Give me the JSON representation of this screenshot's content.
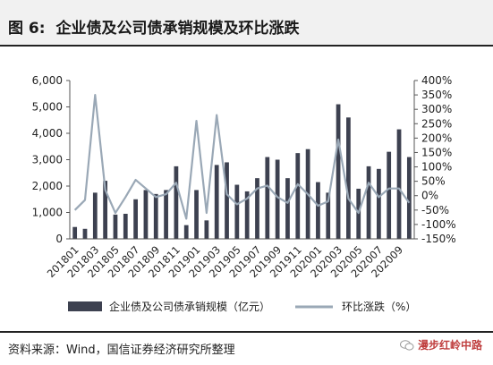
{
  "header": {
    "figure_label": "图 6:",
    "title": "企业债及公司债承销规模及环比涨跌"
  },
  "footer": {
    "source": "资料来源：Wind，国信证券经济研究所整理",
    "watermark": "漫步红岭中路"
  },
  "chart_data": {
    "type": "bar",
    "title": "",
    "categories": [
      "201801",
      "201802",
      "201803",
      "201804",
      "201805",
      "201806",
      "201807",
      "201808",
      "201809",
      "201810",
      "201811",
      "201812",
      "201901",
      "201902",
      "201903",
      "201904",
      "201905",
      "201906",
      "201907",
      "201908",
      "201909",
      "201910",
      "201911",
      "201912",
      "202001",
      "202002",
      "202003",
      "202004",
      "202005",
      "202006",
      "202007",
      "202008",
      "202009",
      "202010"
    ],
    "x_tick_labels": [
      "201801",
      "201803",
      "201805",
      "201807",
      "201809",
      "201811",
      "201901",
      "201903",
      "201905",
      "201907",
      "201909",
      "201911",
      "202001",
      "202003",
      "202005",
      "202007",
      "202009"
    ],
    "series": [
      {
        "name": "企业债及公司债承销规模（亿元）",
        "axis": "left",
        "color": "#3d4150",
        "values": [
          450,
          380,
          1750,
          2200,
          920,
          950,
          1500,
          1850,
          1700,
          1850,
          2750,
          520,
          1850,
          700,
          2800,
          2900,
          2050,
          1800,
          2300,
          3100,
          3000,
          2300,
          3250,
          3400,
          2150,
          1750,
          5100,
          4600,
          1900,
          2750,
          2650,
          3300,
          4150,
          3100
        ]
      },
      {
        "name": "环比涨跌（%）",
        "axis": "right",
        "color": "#9aa8b6",
        "values": [
          -50,
          -15,
          350,
          20,
          -60,
          -5,
          55,
          25,
          -5,
          5,
          45,
          -80,
          260,
          -60,
          280,
          5,
          -30,
          -10,
          25,
          35,
          -5,
          -25,
          40,
          5,
          -35,
          -20,
          195,
          -10,
          -60,
          45,
          -5,
          25,
          25,
          -25
        ]
      }
    ],
    "y_left": {
      "ticks": [
        "0",
        "1,000",
        "2,000",
        "3,000",
        "4,000",
        "5,000",
        "6,000"
      ],
      "min": 0,
      "max": 6000
    },
    "y_right": {
      "ticks": [
        "-150%",
        "-100%",
        "-50%",
        "0%",
        "50%",
        "100%",
        "150%",
        "200%",
        "250%",
        "300%",
        "350%",
        "400%"
      ],
      "min": -150,
      "max": 400
    },
    "grid": false,
    "legend_position": "bottom"
  }
}
